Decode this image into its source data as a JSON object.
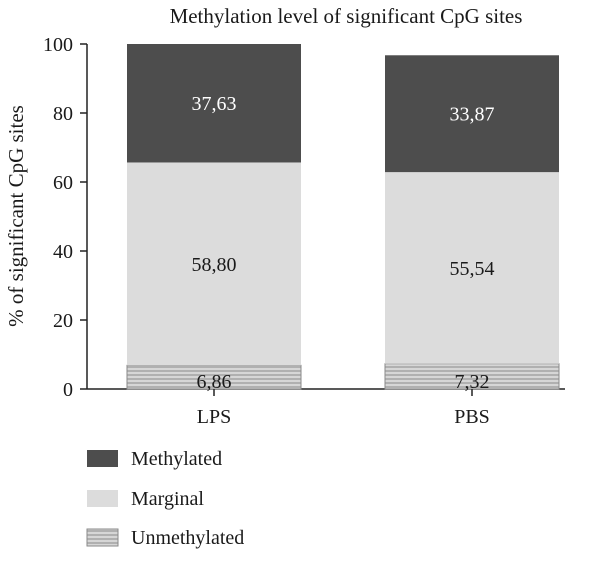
{
  "chart_data": {
    "type": "bar",
    "stacked": true,
    "title": "Methylation level of significant CpG sites",
    "xlabel": "",
    "ylabel": "% of significant CpG sites",
    "ylim": [
      0,
      100
    ],
    "yticks": [
      0,
      20,
      40,
      60,
      80,
      100
    ],
    "categories": [
      "LPS",
      "PBS"
    ],
    "series": [
      {
        "name": "Unmethylated",
        "values": [
          6.86,
          7.32
        ],
        "labels": [
          "6,86",
          "7,32"
        ],
        "color": "#c8c8c8",
        "pattern": "horizontal-stripes"
      },
      {
        "name": "Marginal",
        "values": [
          58.8,
          55.54
        ],
        "labels": [
          "58,80",
          "55,54"
        ],
        "color": "#dcdcdc"
      },
      {
        "name": "Methylated",
        "values": [
          37.63,
          33.87
        ],
        "labels": [
          "37,63",
          "33,87"
        ],
        "color": "#4d4d4d"
      }
    ],
    "legend": {
      "position": "bottom-left",
      "order": [
        "Methylated",
        "Marginal",
        "Unmethylated"
      ]
    },
    "grid": false
  }
}
